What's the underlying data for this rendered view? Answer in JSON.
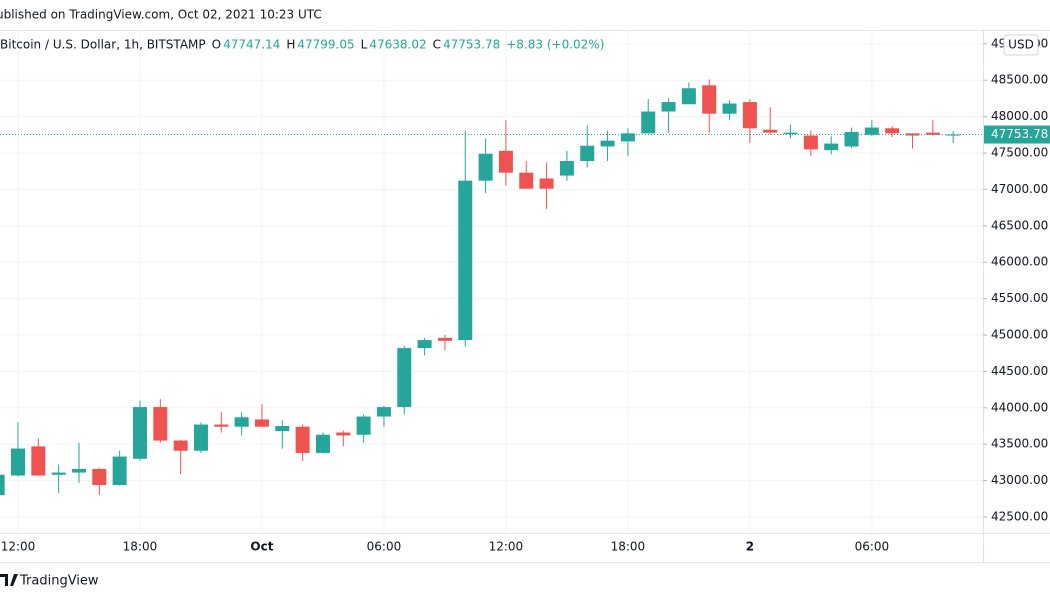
{
  "page": {
    "published": "ublished on TradingView.com, Oct 02, 2021 10:23 UTC",
    "symbol": "Bitcoin / U.S. Dollar, 1h, BITSTAMP",
    "ohlc_letters": [
      "O",
      "H",
      "L",
      "C"
    ],
    "change": "+8.83 (+0.02%)",
    "currency": "USD",
    "brand": "TradingView"
  },
  "chart_data": {
    "type": "candlestick",
    "up_color": "#26a69a",
    "down_color": "#ef5350",
    "grid": true,
    "categories": [
      null,
      "12:00",
      null,
      null,
      null,
      null,
      null,
      "18:00",
      null,
      null,
      null,
      null,
      null,
      "Oct",
      null,
      null,
      null,
      null,
      null,
      "06:00",
      null,
      null,
      null,
      null,
      null,
      "12:00",
      null,
      null,
      null,
      null,
      null,
      "18:00",
      null,
      null,
      null,
      null,
      null,
      "2",
      null,
      null,
      null,
      null,
      null,
      "06:00",
      null,
      null,
      null,
      null
    ],
    "open": [
      42800,
      43070,
      43470,
      43080,
      43110,
      43160,
      42940,
      43300,
      44010,
      43550,
      43410,
      43770,
      43740,
      43840,
      43680,
      43740,
      43380,
      43660,
      43630,
      43880,
      44010,
      44820,
      44960,
      44930,
      47120,
      47530,
      47230,
      47150,
      47190,
      47390,
      47590,
      47660,
      47770,
      48070,
      48170,
      48430,
      48040,
      48200,
      47820,
      47760,
      47740,
      47540,
      47590,
      47750,
      47840,
      47770,
      47780,
      47747.14
    ],
    "high": [
      43100,
      43800,
      43580,
      43220,
      43520,
      43170,
      43410,
      44100,
      44120,
      43560,
      43800,
      43940,
      43940,
      44050,
      43830,
      43770,
      43660,
      43690,
      43910,
      44030,
      44850,
      44960,
      45000,
      47810,
      47700,
      47950,
      47390,
      47370,
      47530,
      47880,
      47810,
      47840,
      48240,
      48250,
      48470,
      48510,
      48220,
      48240,
      48130,
      47890,
      47810,
      47730,
      47850,
      47950,
      47870,
      47770,
      47950,
      47799.05
    ],
    "low": [
      42780,
      43060,
      43060,
      42830,
      42970,
      42800,
      42930,
      43270,
      43520,
      43090,
      43380,
      43660,
      43620,
      43740,
      43440,
      43270,
      43370,
      43470,
      43520,
      43740,
      43910,
      44720,
      44790,
      44840,
      46950,
      47050,
      47010,
      46730,
      47120,
      47300,
      47390,
      47460,
      47770,
      47780,
      48170,
      47770,
      47950,
      47640,
      47750,
      47700,
      47460,
      47480,
      47570,
      47730,
      47720,
      47560,
      47740,
      47638.02
    ],
    "close": [
      43080,
      43440,
      43070,
      43110,
      43160,
      42940,
      43330,
      44010,
      43550,
      43410,
      43770,
      43740,
      43870,
      43740,
      43750,
      43380,
      43630,
      43620,
      43880,
      44010,
      44820,
      44930,
      44920,
      47120,
      47490,
      47230,
      47010,
      47010,
      47390,
      47600,
      47670,
      47770,
      48070,
      48200,
      48390,
      48040,
      48180,
      47840,
      47780,
      47780,
      47550,
      47630,
      47790,
      47850,
      47770,
      47740,
      47750,
      47753.78
    ],
    "ylim": [
      42280,
      49190
    ],
    "yticks": [
      {
        "value": 42500,
        "label": "42500.00"
      },
      {
        "value": 43000,
        "label": "43000.00"
      },
      {
        "value": 43500,
        "label": "43500.00"
      },
      {
        "value": 44000,
        "label": "44000.00"
      },
      {
        "value": 44500,
        "label": "44500.00"
      },
      {
        "value": 45000,
        "label": "45000.00"
      },
      {
        "value": 45500,
        "label": "45500.00"
      },
      {
        "value": 46000,
        "label": "46000.00"
      },
      {
        "value": 46500,
        "label": "46500.00"
      },
      {
        "value": 47000,
        "label": "47000.00"
      },
      {
        "value": 47500,
        "label": "47500.00"
      },
      {
        "value": 48000,
        "label": "48000.00"
      },
      {
        "value": 48500,
        "label": "48500.00"
      },
      {
        "value": 49000,
        "label": "49000.00"
      }
    ]
  }
}
